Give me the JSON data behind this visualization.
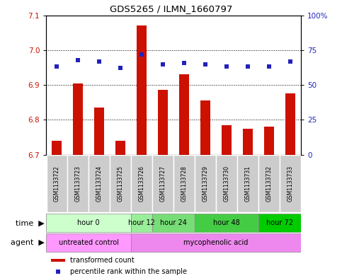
{
  "title": "GDS5265 / ILMN_1660797",
  "samples": [
    "GSM1133722",
    "GSM1133723",
    "GSM1133724",
    "GSM1133725",
    "GSM1133726",
    "GSM1133727",
    "GSM1133728",
    "GSM1133729",
    "GSM1133730",
    "GSM1133731",
    "GSM1133732",
    "GSM1133733"
  ],
  "transformed_count": [
    6.74,
    6.905,
    6.835,
    6.74,
    7.07,
    6.885,
    6.93,
    6.855,
    6.785,
    6.775,
    6.78,
    6.875
  ],
  "percentile_rank": [
    63,
    68,
    67,
    62,
    72,
    65,
    66,
    65,
    63,
    63,
    63,
    67
  ],
  "bar_color": "#cc1100",
  "dot_color": "#2222bb",
  "ylim_left": [
    6.7,
    7.1
  ],
  "ylim_right": [
    0,
    100
  ],
  "yticks_left": [
    6.7,
    6.8,
    6.9,
    7.0,
    7.1
  ],
  "yticks_right": [
    0,
    25,
    50,
    75,
    100
  ],
  "time_groups": [
    {
      "label": "hour 0",
      "indices": [
        0,
        1,
        2,
        3
      ],
      "color": "#ccffcc"
    },
    {
      "label": "hour 12",
      "indices": [
        4
      ],
      "color": "#99ee99"
    },
    {
      "label": "hour 24",
      "indices": [
        5,
        6
      ],
      "color": "#77dd77"
    },
    {
      "label": "hour 48",
      "indices": [
        7,
        8,
        9
      ],
      "color": "#44cc44"
    },
    {
      "label": "hour 72",
      "indices": [
        10,
        11
      ],
      "color": "#00cc00"
    }
  ],
  "agent_groups": [
    {
      "label": "untreated control",
      "indices": [
        0,
        1,
        2,
        3
      ],
      "color": "#ff99ff"
    },
    {
      "label": "mycophenolic acid",
      "indices": [
        4,
        5,
        6,
        7,
        8,
        9,
        10,
        11
      ],
      "color": "#ee88ee"
    }
  ],
  "time_label": "time",
  "agent_label": "agent",
  "legend_bar_label": "transformed count",
  "legend_dot_label": "percentile rank within the sample",
  "sample_box_color": "#cccccc",
  "background_color": "#ffffff"
}
